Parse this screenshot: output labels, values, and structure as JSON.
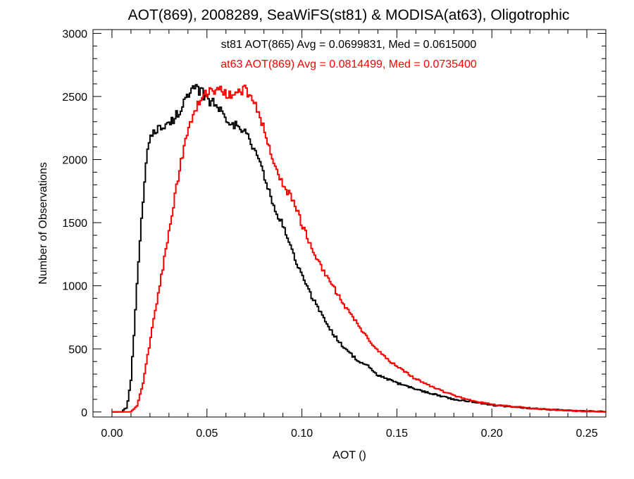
{
  "chart_data": {
    "type": "line",
    "style": "step-histogram",
    "title": "AOT(869), 2008289, SeaWiFS(st81) & MODISA(at63), Oligotrophic",
    "xlabel": "AOT ()",
    "ylabel": "Number of Observations",
    "xlim": [
      -0.01,
      0.26
    ],
    "ylim": [
      -40,
      3030
    ],
    "xticks": [
      0.0,
      0.05,
      0.1,
      0.15,
      0.2,
      0.25
    ],
    "xtick_labels": [
      "0.00",
      "0.05",
      "0.10",
      "0.15",
      "0.20",
      "0.25"
    ],
    "yticks": [
      0,
      500,
      1000,
      1500,
      2000,
      2500,
      3000
    ],
    "ytick_labels": [
      "0",
      "500",
      "1000",
      "1500",
      "2000",
      "2500",
      "3000"
    ],
    "grid": false,
    "legend_position": "top-center",
    "series": [
      {
        "name": "st81",
        "legend_text": "st81 AOT(865) Avg = 0.0699831, Med = 0.0615000",
        "color": "#000000",
        "x": [
          0.0,
          0.005,
          0.008,
          0.01,
          0.012,
          0.014,
          0.016,
          0.018,
          0.02,
          0.022,
          0.025,
          0.03,
          0.035,
          0.04,
          0.044,
          0.048,
          0.052,
          0.055,
          0.06,
          0.065,
          0.07,
          0.075,
          0.08,
          0.085,
          0.09,
          0.095,
          0.1,
          0.105,
          0.11,
          0.115,
          0.12,
          0.125,
          0.13,
          0.135,
          0.14,
          0.15,
          0.16,
          0.17,
          0.18,
          0.19,
          0.2,
          0.21,
          0.22,
          0.23,
          0.24,
          0.25,
          0.26
        ],
        "y": [
          0,
          0,
          40,
          250,
          700,
          1200,
          1600,
          1950,
          2200,
          2230,
          2250,
          2270,
          2380,
          2500,
          2560,
          2520,
          2460,
          2430,
          2340,
          2270,
          2220,
          2080,
          1890,
          1620,
          1480,
          1270,
          1080,
          920,
          790,
          650,
          550,
          470,
          400,
          360,
          290,
          230,
          180,
          140,
          100,
          80,
          55,
          40,
          30,
          20,
          12,
          5,
          2
        ]
      },
      {
        "name": "at63",
        "legend_text": "at63 AOT(869) Avg = 0.0814499, Med = 0.0735400",
        "color": "#ff0000",
        "x": [
          0.0,
          0.01,
          0.013,
          0.016,
          0.02,
          0.024,
          0.028,
          0.032,
          0.036,
          0.04,
          0.044,
          0.048,
          0.052,
          0.056,
          0.06,
          0.065,
          0.07,
          0.075,
          0.08,
          0.085,
          0.09,
          0.095,
          0.1,
          0.105,
          0.11,
          0.115,
          0.12,
          0.125,
          0.13,
          0.135,
          0.14,
          0.145,
          0.15,
          0.155,
          0.16,
          0.17,
          0.18,
          0.19,
          0.2,
          0.21,
          0.22,
          0.23,
          0.24,
          0.25,
          0.26
        ],
        "y": [
          0,
          0,
          40,
          200,
          550,
          900,
          1250,
          1600,
          1950,
          2250,
          2400,
          2500,
          2540,
          2560,
          2530,
          2520,
          2550,
          2450,
          2260,
          1960,
          1800,
          1690,
          1490,
          1300,
          1160,
          1030,
          900,
          790,
          680,
          580,
          490,
          420,
          360,
          310,
          260,
          190,
          130,
          90,
          60,
          45,
          30,
          20,
          12,
          5,
          2
        ]
      }
    ]
  }
}
